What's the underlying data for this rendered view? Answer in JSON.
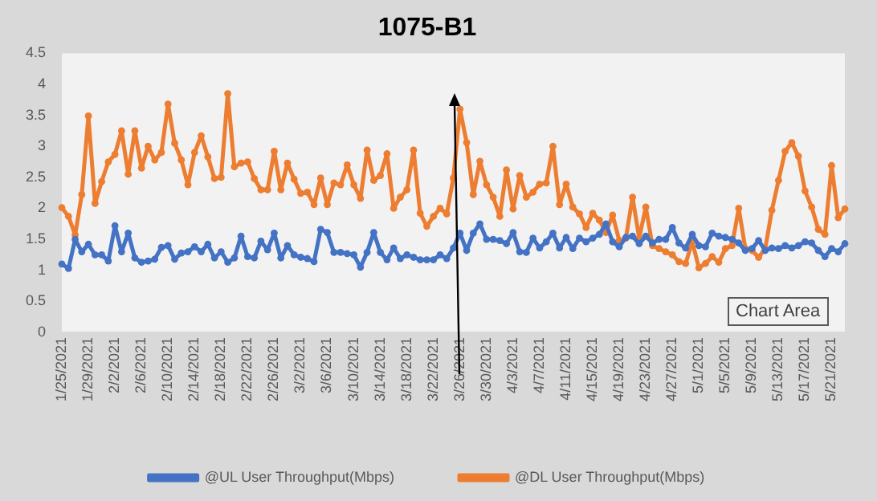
{
  "chart_data": {
    "type": "line",
    "title": "1075-B1",
    "categories": [
      "1/25/2021",
      null,
      null,
      null,
      "1/29/2021",
      null,
      null,
      null,
      "2/2/2021",
      null,
      null,
      null,
      "2/6/2021",
      null,
      null,
      null,
      "2/10/2021",
      null,
      null,
      null,
      "2/14/2021",
      null,
      null,
      null,
      "2/18/2021",
      null,
      null,
      null,
      "2/22/2021",
      null,
      null,
      null,
      "2/26/2021",
      null,
      null,
      null,
      "3/2/2021",
      null,
      null,
      null,
      "3/6/2021",
      null,
      null,
      null,
      "3/10/2021",
      null,
      null,
      null,
      "3/14/2021",
      null,
      null,
      null,
      "3/18/2021",
      null,
      null,
      null,
      "3/22/2021",
      null,
      null,
      null,
      "3/26/2021",
      null,
      null,
      null,
      "3/30/2021",
      null,
      null,
      null,
      "4/3/2021",
      null,
      null,
      null,
      "4/7/2021",
      null,
      null,
      null,
      "4/11/2021",
      null,
      null,
      null,
      "4/15/2021",
      null,
      null,
      null,
      "4/19/2021",
      null,
      null,
      null,
      "4/23/2021",
      null,
      null,
      null,
      "4/27/2021",
      null,
      null,
      null,
      "5/1/2021",
      null,
      null,
      null,
      "5/5/2021",
      null,
      null,
      null,
      "5/9/2021",
      null,
      null,
      null,
      "5/13/2021",
      null,
      null,
      null,
      "5/17/2021",
      null,
      null,
      null,
      "5/21/2021",
      null,
      null
    ],
    "series": [
      {
        "name": "@UL User Throughput(Mbps)",
        "color": "#4472c4",
        "values": [
          1.1,
          1.03,
          1.5,
          1.3,
          1.42,
          1.25,
          1.25,
          1.15,
          1.72,
          1.3,
          1.6,
          1.2,
          1.13,
          1.15,
          1.18,
          1.37,
          1.4,
          1.18,
          1.28,
          1.3,
          1.38,
          1.3,
          1.42,
          1.2,
          1.3,
          1.13,
          1.2,
          1.55,
          1.22,
          1.2,
          1.47,
          1.33,
          1.6,
          1.2,
          1.4,
          1.25,
          1.21,
          1.19,
          1.14,
          1.66,
          1.61,
          1.29,
          1.29,
          1.27,
          1.25,
          1.05,
          1.29,
          1.61,
          1.29,
          1.17,
          1.36,
          1.19,
          1.25,
          1.21,
          1.17,
          1.17,
          1.17,
          1.25,
          1.19,
          1.36,
          1.6,
          1.32,
          1.6,
          1.75,
          1.5,
          1.5,
          1.48,
          1.43,
          1.61,
          1.3,
          1.29,
          1.52,
          1.36,
          1.46,
          1.6,
          1.36,
          1.53,
          1.35,
          1.52,
          1.46,
          1.52,
          1.58,
          1.75,
          1.46,
          1.38,
          1.53,
          1.55,
          1.43,
          1.55,
          1.44,
          1.5,
          1.5,
          1.69,
          1.44,
          1.36,
          1.58,
          1.4,
          1.38,
          1.6,
          1.55,
          1.53,
          1.5,
          1.44,
          1.32,
          1.35,
          1.48,
          1.32,
          1.36,
          1.35,
          1.4,
          1.36,
          1.4,
          1.46,
          1.44,
          1.32,
          1.22,
          1.35,
          1.3,
          1.43
        ]
      },
      {
        "name": "@DL User Throughput(Mbps)",
        "color": "#ed7d31",
        "values": [
          2.01,
          1.87,
          1.57,
          2.22,
          3.49,
          2.08,
          2.43,
          2.75,
          2.87,
          3.25,
          2.55,
          3.25,
          2.65,
          3.0,
          2.78,
          2.9,
          3.68,
          3.05,
          2.78,
          2.38,
          2.9,
          3.17,
          2.83,
          2.48,
          2.5,
          3.85,
          2.67,
          2.73,
          2.75,
          2.48,
          2.3,
          2.3,
          2.92,
          2.3,
          2.73,
          2.47,
          2.24,
          2.26,
          2.06,
          2.49,
          2.06,
          2.41,
          2.38,
          2.7,
          2.38,
          2.16,
          2.94,
          2.45,
          2.53,
          2.88,
          2.0,
          2.18,
          2.3,
          2.94,
          1.92,
          1.71,
          1.87,
          2.0,
          1.91,
          2.49,
          3.6,
          3.06,
          2.22,
          2.76,
          2.38,
          2.18,
          1.87,
          2.62,
          1.99,
          2.53,
          2.18,
          2.26,
          2.39,
          2.41,
          3.0,
          2.06,
          2.39,
          2.02,
          1.91,
          1.69,
          1.92,
          1.81,
          1.61,
          1.89,
          1.48,
          1.52,
          2.18,
          1.52,
          2.02,
          1.4,
          1.35,
          1.3,
          1.25,
          1.14,
          1.11,
          1.46,
          1.04,
          1.11,
          1.22,
          1.13,
          1.35,
          1.4,
          2.0,
          1.35,
          1.32,
          1.21,
          1.35,
          1.97,
          2.45,
          2.92,
          3.06,
          2.84,
          2.28,
          2.02,
          1.66,
          1.58,
          2.69,
          1.85,
          1.99
        ]
      }
    ],
    "ylim": [
      0,
      4.5
    ],
    "yticks": [
      0,
      0.5,
      1,
      1.5,
      2,
      2.5,
      3,
      3.5,
      4,
      4.5
    ],
    "grid": false,
    "legend": "bottom",
    "marker": "circle",
    "line_style": "solid",
    "annotations": [
      "Chart Area"
    ]
  }
}
